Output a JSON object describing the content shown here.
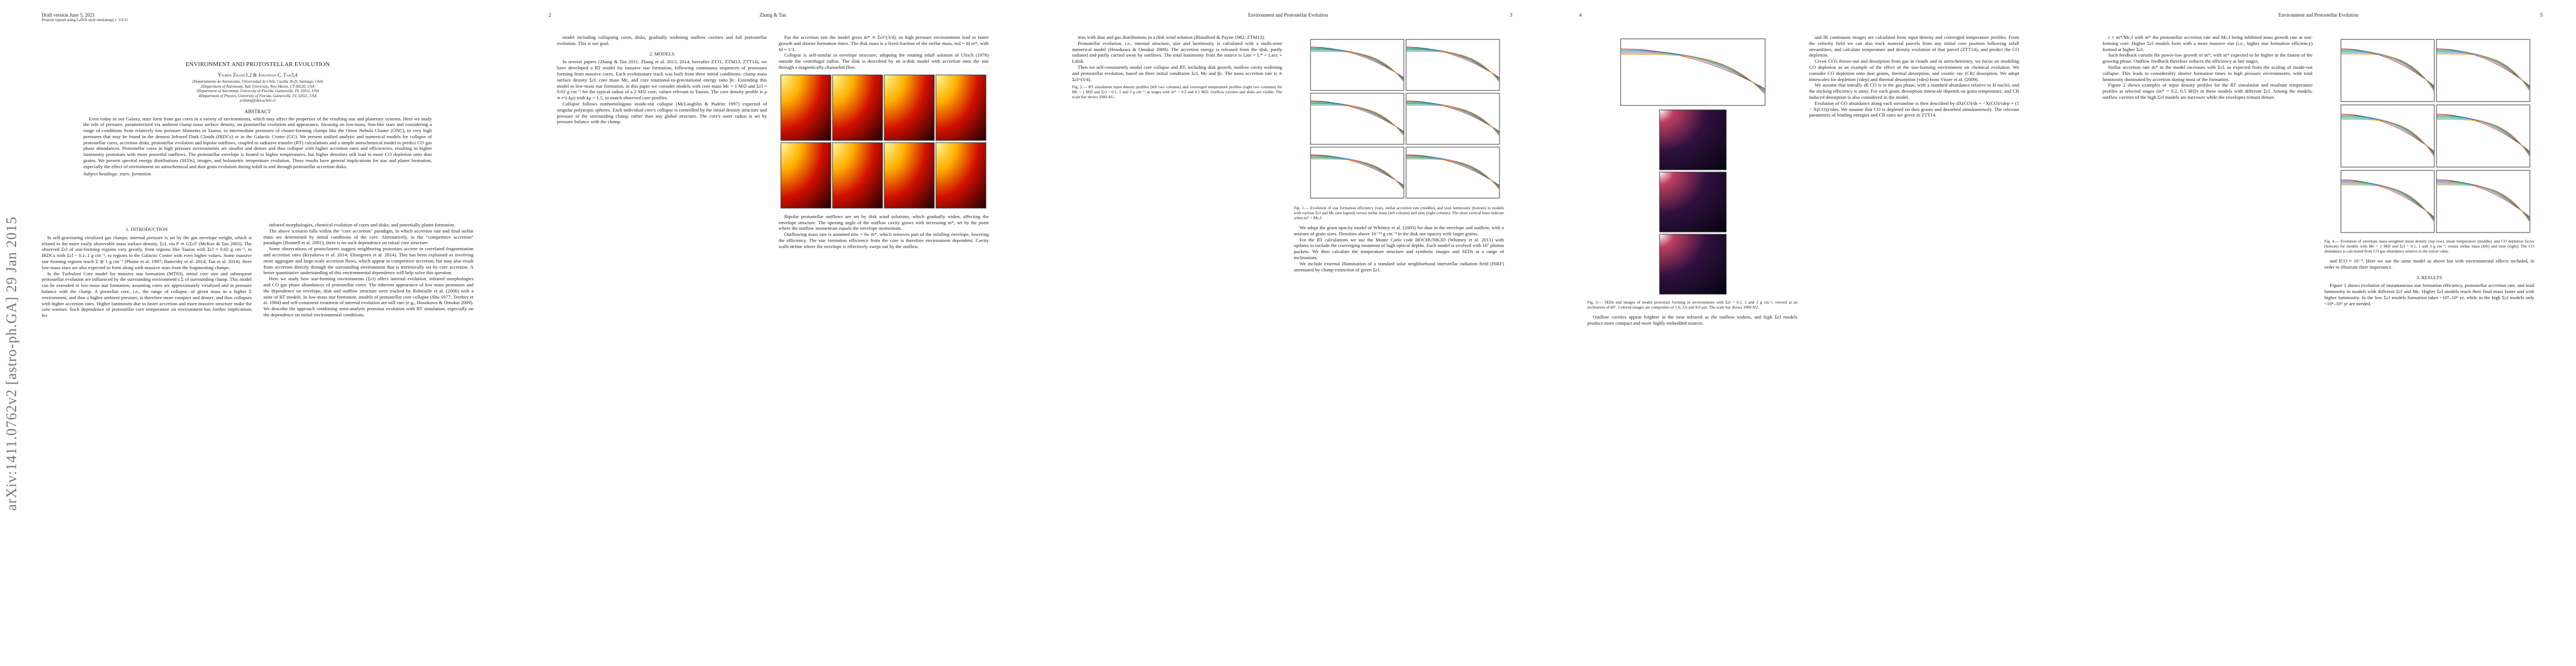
{
  "stamp": "arXiv:1411.0762v2  [astro-ph.GA]  29 Jan 2015",
  "pages": [
    {
      "head_left": "Draft version June 5, 2021",
      "head_sub": "Preprint typeset using LaTeX style emulateapj v. 5/2/11",
      "title": "ENVIRONMENT AND PROTOSTELLAR EVOLUTION",
      "authors": "Yichen Zhang1,2 & Jonathan C. Tan3,4",
      "affiliations": [
        "1Departamento de Astronomía, Universidad de Chile, Casilla 36-D, Santiago, Chile",
        "2Department of Astronomy, Yale University, New Haven, CT 06520, USA",
        "3Department of Astronomy, University of Florida, Gainesville, FL 32611, USA",
        "4Department of Physics, University of Florida, Gainesville, FL 32611, USA",
        "yczhang@das.uchile.cl"
      ],
      "abstract_heading": "ABSTRACT",
      "abstract": "Even today in our Galaxy, stars form from gas cores in a variety of environments, which may affect the properties of the resulting star and planetary systems. Here we study the role of pressure, parameterized via ambient clump mass surface density, on protostellar evolution and appearance, focusing on low-mass, Sun-like stars and considering a range of conditions from relatively low pressure filaments in Taurus, to intermediate pressures of cluster-forming clumps like the Orion Nebula Cluster (ONC), to very high pressures that may be found in the densest Infrared Dark Clouds (IRDCs) or in the Galactic Center (GC). We present unified analytic and numerical models for collapse of protostellar cores, accretion disks, protostellar evolution and bipolar outflows, coupled to radiative transfer (RT) calculations and a simple astrochemical model to predict CO gas phase abundances. Protostellar cores in high pressure environments are smaller and denser and thus collapse with higher accretion rates and efficiencies, resulting in higher luminosity protostars with more powerful outflows. The protostellar envelope is heated to higher temperatures, but higher densities still lead to more CO depletion onto dust grains. We present spectral energy distributions (SEDs), images, and bolometric temperature evolution. These results have general implications for star and planet formation, especially the effect of environment on astrochemical and dust grain evolution during infall to and through protostellar accretion disks.",
      "keywords": "Subject headings: stars: formation",
      "left": [
        {
          "heading": "1. INTRODUCTION"
        },
        "In self-gravitating virialized gas clumps, internal pressure is set by the gas envelope weight, which is related to the more easily observable mass surface density, Σcl, via P ≃ GΣcl² (McKee & Tan 2003). The observed Σcl of star-forming regions vary greatly, from regions like Taurus with Σcl ≈ 0.02 g cm⁻², to IRDCs with Σcl ~ 0.1–1 g cm⁻², to regions in the Galactic Center with even higher values. Some massive star forming regions reach Σ ≳ 1 g cm⁻² (Plume et al. 1997; Battersby et al. 2014; Tan et al. 2014). Here low-mass stars are also expected to form along with massive stars from the fragmenting clumps.",
        "In the Turbulent Core model for massive star formation (MT03), initial core size and subsequent protostellar evolution are influenced by the surrounding environment's Σ of surrounding clump. This model can be extended to low-mass star formation, assuming cores are approximately virialized and in pressure balance with the clump. A prestellar core, i.e., the range of collapse, of given mass in a higher Σ environment, and thus a higher ambient pressure, is therefore more compact and denser, and thus collapses with higher accretion rates. Higher luminosity due to faster accretion and more massive structure make the core warmer. Such dependence of protostellar core temperature on environment has further implications for"
      ],
      "right": [
        "infrared morphologies, chemical evolution of cores and disks, and potentially planet formation.",
        "The above scenario falls within the \"core accretion\" paradigm, in which accretion rate and final stellar mass are determined by initial conditions of the core. Alternatively, in the \"competitive accretion\" paradigm (Bonnell et al. 2001), there is no such dependence on initial core structure.",
        "Some observations of protoclusters suggest neighboring protostars accrete in correlated fragmentation and accretion rates (Kryukova et al. 2014; Elmegreen et al. 2014). This has been explained as involving more aggregate and large-scale accretion flows, which appear in competitive accretion, but may also result from accretion directly through the surrounding environment that is intrinsically set by core accretion. A better quantitative understanding of this environmental dependence will help solve this question.",
        "Here we study how star-forming environments (Σcl) affect internal evolution, infrared morphologies and CO gas phase abundances of protostellar cores. The inherent appearance of low mass protostars and the dependence on envelope, disk and outflow structure were tracked by Robitaille et al. (2006) with a suite of RT models. In low-mass star formation, models of protostellar core collapse (Shu 1977; Terebey et al. 1984) and self-consistent treatment of internal evolution are still rare (e.g., Hosokawa & Omukai 2009). We describe the approach combining semi-analytic protostar evolution with RT simulation, especially on the dependence on initial environmental conditions."
      ]
    },
    {
      "head_left": "2",
      "head_center": "Zhang & Tan",
      "left": [
        "model including collapsing cores, disks, gradually widening outflow cavities and full protostellar evolution. This is our goal.",
        {
          "heading": "2. MODELS"
        },
        "In several papers (Zhang & Tan 2011; Zhang et al. 2013, 2014, hereafter ZT11, ZTM13, ZTT14), we have developed a RT model for massive star formation, following continuous sequences of protostars forming from massive cores. Each evolutionary track was built from three initial conditions: clump mass surface density Σcl, core mass Mc, and core rotational-to-gravitational energy ratio βc. Extending this model to low-mass star formation, in this paper we consider models with core mass Mc = 1 M⊙ and Σcl = 0.03 g cm⁻² for the typical radius of a 2 M⊙ core, values relevant to Taurus. The core density profile is ρ ∝ r^(-kρ) with kρ = 1.5, to match observed core profiles.",
        "Collapse follows nonhomologous inside-out collapse (McLaughlin & Pudritz 1997) expected of singular polytropic spheres. Each individual core's collapse is controlled by the initial density structure and pressure of the surrounding clump, rather than any global structure. The core's outer radius is set by pressure balance with the clump."
      ],
      "right": [
        "For the accretion rate the model gives ṁ* ∝ Σcl^(3/4), so high pressure environments lead to faster growth and shorter formation times. The disk mass is a fixed fraction of the stellar mass, md = fd m*, with fd = 1/3.",
        "Collapse is self-similar in envelope structure, adopting the rotating infall solution of Ulrich (1976) outside the centrifugal radius. The disk is described by an α-disk model with accretion onto the star through a magnetically channeled flow.",
        "Bipolar protostellar outflows are set by disk wind solutions, which gradually widen, affecting the envelope structure. The opening angle of the outflow cavity grows with increasing m*, set by the point where the outflow momentum equals the envelope momentum.",
        "Outflowing mass rate is assumed ṁw = fw ṁ*, which removes part of the infalling envelope, lowering the efficiency. The star formation efficiency from the core is therefore environment dependent. Cavity walls define where the envelope is effectively swept out by the outflow."
      ]
    },
    {
      "head_center": "Environment and Protostellar Evolution",
      "head_right": "3",
      "left": [
        "ities with dust and gas distributions in a disk wind solution (Blandford & Payne 1982; ZTM13).",
        "Protostellar evolution, i.e., internal structure, size and luminosity, is calculated with a multi-zone numerical model (Hosokawa & Omukai 2009). The accretion energy is released from the disk, partly radiated and partly carried away by outflows. The total luminosity from the source is Ltot = L* + Lacc + Ldisk.",
        "Then we self-consistently model core collapse and RT, including disk growth, outflow cavity widening and protostellar evolution, based on three initial conditions Σcl, Mc and βc. The mass accretion rate is ∝ Σcl^(3/4).",
        {
          "caption": "Fig. 2.— RT simulation input density profiles (left two columns) and converged temperature profiles (right two columns) for Mc = 1 M⊙ and Σcl = 0.1, 1 and 3 g cm⁻², at stages with m* = 0.2 and 0.5 M⊙. Outflow cavities and disks are visible. The scale bar shows 1000 AU."
        }
      ],
      "right": [
        {
          "caption": "Fig. 1.— Evolution of star formation efficiency (top), stellar accretion rate (middle), and total luminosity (bottom) in models with various Σcl and Mc (see legend) versus stellar mass (left column) and time (right column). The short vertical lines indicate when m* = Mc,f."
        },
        "We adopt the grain opacity model of Whitney et al. (2003) for dust in the envelope and outflow, with a mixture of grain sizes. Densities above 10⁻¹⁴ g cm⁻³ in the disk use opacity with larger grains.",
        "For the RT calculations we use the Monte Carlo code HOCHUNK3D (Whitney et al. 2013) with updates to include the converging treatment of high optical depths. Each model is evolved with 10⁷ photon packets. We then calculate the temperature structure and synthetic images and SEDs at a range of inclinations.",
        "We include external illumination of a standard solar neighborhood interstellar radiation field (ISRF) attenuated by clump extinction of given Σcl."
      ]
    },
    {
      "head_left": "4",
      "left": [
        {
          "caption": "Fig. 3.— SEDs and images of model protostars forming in environments with Σcl = 0.1, 1 and 3 g cm⁻², viewed at an inclination of 60°. Colored images are composites of 1.6, 3.6 and 8.0 μm. The scale bar shows 1000 AU."
        },
        "Outflow cavities appear brighter in the near infrared as the outflow widens, and high Σcl models produce more compact and more highly embedded sources."
      ],
      "right": [
        "and IR continuum images are calculated from input density and converged temperature profiles. From the velocity field we can also track material parcels from any initial core position following infall streamlines, and calculate temperature and density evolution of that parcel (ZTT14), and predict the CO depletion.",
        "Given CO's freeze-out and desorption from gas in clouds and in astrochemistry, we focus on modeling CO depletion as an example of the effect of the star-forming environment on chemical evolution. We consider CO depletion onto dust grains, thermal desorption, and cosmic ray (CR) desorption. We adopt timescales for depletion (τdep) and thermal desorption (τdes) from Visser et al. (2009).",
        "We assume that initially all CO is in the gas phase, with a standard abundance relative to H nuclei, and the sticking efficiency is unity. For each grain, desorption timescale depends on grain temperature, and CR induced desorption is also considered in the model.",
        "Evolution of CO abundance along each streamline is then described by dX(CO)/dt = −X(CO)/τdep + (1 − X(CO))/τdes. We assume that CO is depleted on dust grains and desorbed simultaneously. The relevant parameters of binding energies and CR rates are given in ZTT14."
      ]
    },
    {
      "head_center": "Environment and Protostellar Evolution",
      "head_right": "5",
      "left": [
        "ε ≡ m*/Mc,f with m* the protostellar accretion rate and Mc,f being inhibited mass growth rate at star-forming core. Higher Σcl models form with a more massive star (i.e., higher star formation efficiency) formed at higher Σcl.",
        "Such feedback curtails the power-law growth of ṁ*, with m* expected to be higher in the fastest of the growing phase. Outflow feedback therefore reduces the efficiency at late stages.",
        "Stellar accretion rate ṁ* in the model increases with Σcl, as expected from the scaling of inside-out collapse. This leads to considerably shorter formation times in high pressure environments, with total luminosity dominated by accretion during most of the formation.",
        "Figure 2 shows examples of input density profiles for the RT simulation and resultant temperature profiles at selected stages (m* = 0.2, 0.5 M⊙) in these models with different Σcl. Among the models, outflow cavities of the high Σcl models are narrower while the envelopes remain denser."
      ],
      "right": [
        {
          "caption": "Fig. 4.— Evolution of envelope mass-weighted mean density (top row), mean temperature (middle), and CO depletion factor (bottom) for models with Mc = 1 M⊙ and Σcl = 0.1, 1 and 3 g cm⁻², versus stellar mass (left) and time (right). The CO abundance is calculated from CO gas abundance relative to the initial value."
        },
        "and fCO ≈ 10⁻⁴. Here we use the same model as above but with environmental effects included, in order to illustrate their importance.",
        {
          "heading": "3. RESULTS"
        },
        "Figure 1 shows evolution of instantaneous star formation efficiency, protostellar accretion rate, and total luminosity in models with different Σcl and Mc. Higher Σcl models reach their final mass faster and with higher luminosity. In the low Σcl models formation takes ~10⁵–10⁶ yr, while in the high Σcl models only ~10⁴–10⁵ yr are needed."
      ]
    }
  ]
}
